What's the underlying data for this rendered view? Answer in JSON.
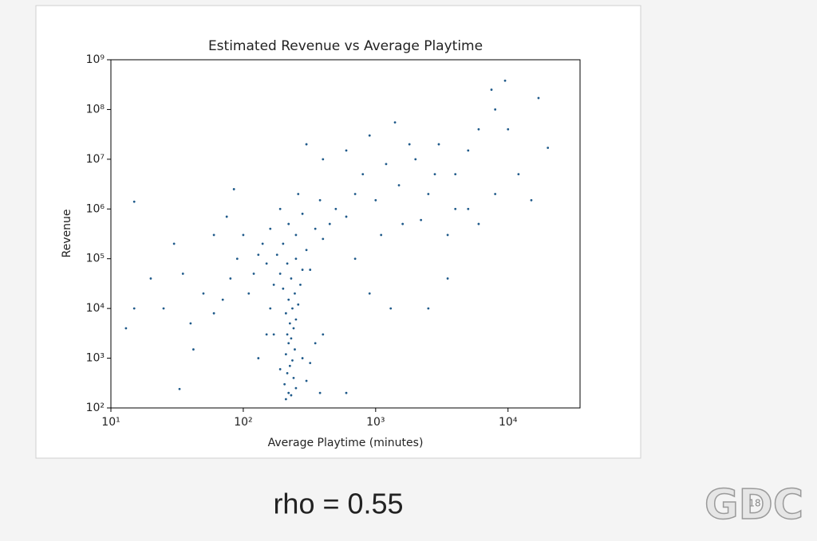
{
  "chart_data": {
    "type": "scatter",
    "title": "Estimated Revenue vs Average Playtime",
    "x_label": "Average Playtime (minutes)",
    "y_label": "Revenue",
    "annotation": "rho = 0.55",
    "color": "#1f5a8a",
    "log_x": true,
    "log_y": true,
    "xlim": [
      10,
      35000
    ],
    "ylim": [
      100,
      1000000000
    ],
    "xticks": [
      {
        "value": 10,
        "label": "10¹"
      },
      {
        "value": 100,
        "label": "10²"
      },
      {
        "value": 1000,
        "label": "10³"
      },
      {
        "value": 10000,
        "label": "10⁴"
      }
    ],
    "yticks": [
      {
        "value": 100,
        "label": "10²"
      },
      {
        "value": 1000,
        "label": "10³"
      },
      {
        "value": 10000,
        "label": "10⁴"
      },
      {
        "value": 100000,
        "label": "10⁵"
      },
      {
        "value": 1000000,
        "label": "10⁶"
      },
      {
        "value": 10000000,
        "label": "10⁷"
      },
      {
        "value": 100000000,
        "label": "10⁸"
      },
      {
        "value": 1000000000,
        "label": "10⁹"
      }
    ],
    "x": [
      210,
      220,
      230,
      250,
      205,
      240,
      215,
      225,
      235,
      210,
      245,
      220,
      230,
      215,
      240,
      225,
      250,
      210,
      235,
      260,
      220,
      245,
      200,
      270,
      230,
      190,
      280,
      215,
      250,
      300,
      320,
      350,
      400,
      380,
      280,
      190,
      170,
      160,
      120,
      150,
      180,
      200,
      250,
      300,
      350,
      400,
      140,
      170,
      110,
      130,
      220,
      280,
      320,
      450,
      500,
      600,
      380,
      260,
      190,
      160,
      100,
      90,
      80,
      70,
      60,
      50,
      40,
      35,
      30,
      25,
      20,
      15,
      13,
      15,
      42,
      33,
      60,
      75,
      85,
      130,
      150,
      700,
      800,
      1000,
      1200,
      1500,
      2000,
      2500,
      3000,
      4000,
      5000,
      6000,
      8000,
      9500,
      7500,
      17000,
      20000,
      15000,
      10000,
      12000,
      900,
      600,
      400,
      300,
      1400,
      1800,
      2200,
      3500,
      5000,
      6000,
      8000,
      1100,
      700,
      1300,
      900,
      2500,
      3500,
      4000,
      2800,
      1600,
      600
    ],
    "y": [
      150,
      200,
      180,
      250,
      300,
      400,
      500,
      700,
      900,
      1200,
      1500,
      2000,
      2500,
      3000,
      4000,
      5000,
      6000,
      8000,
      10000,
      12000,
      15000,
      20000,
      25000,
      30000,
      40000,
      50000,
      60000,
      80000,
      100000,
      350,
      800,
      2000,
      3000,
      200,
      1000,
      600,
      3000,
      10000,
      50000,
      80000,
      120000,
      200000,
      300000,
      150000,
      400000,
      250000,
      200000,
      30000,
      20000,
      120000,
      500000,
      800000,
      60000,
      500000,
      1000000,
      700000,
      1500000,
      2000000,
      1000000,
      400000,
      300000,
      100000,
      40000,
      15000,
      8000,
      20000,
      5000,
      50000,
      200000,
      10000,
      40000,
      10000,
      4000,
      1400000,
      1500,
      240,
      300000,
      700000,
      2500000,
      1000,
      3000,
      2000000,
      5000000,
      1500000,
      8000000,
      3000000,
      10000000,
      2000000,
      20000000,
      5000000,
      15000000,
      40000000,
      100000000,
      380000000,
      250000000,
      170000000,
      17000000,
      1500000,
      40000000,
      5000000,
      30000000,
      15000000,
      10000000,
      20000000,
      55000000,
      20000000,
      600000,
      300000,
      1000000,
      500000,
      2000000,
      300000,
      100000,
      10000,
      20000,
      10000,
      40000,
      1000000,
      5000000,
      500000,
      200
    ]
  },
  "logo": {
    "text": "GDC",
    "edition": "18"
  }
}
